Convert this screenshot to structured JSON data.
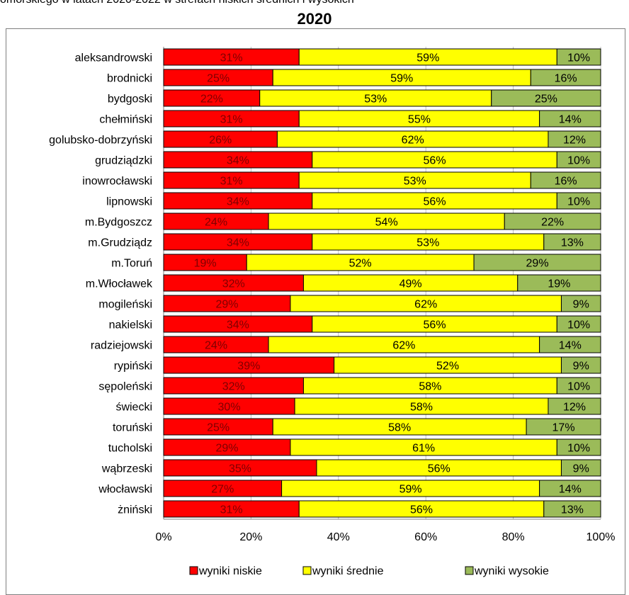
{
  "caption": "omorskiego w latach 2020-2022 w strefach niskich średnich i wysokich",
  "chart_data": {
    "type": "bar",
    "orientation": "horizontal",
    "stacked": true,
    "percent_stacked": true,
    "title": "2020",
    "categories": [
      "aleksandrowski",
      "brodnicki",
      "bydgoski",
      "chełmiński",
      "golubsko-dobrzyński",
      "grudziądzki",
      "inowrocławski",
      "lipnowski",
      "m.Bydgoszcz",
      "m.Grudziądz",
      "m.Toruń",
      "m.Włocławek",
      "mogileński",
      "nakielski",
      "radziejowski",
      "rypiński",
      "sępoleński",
      "świecki",
      "toruński",
      "tucholski",
      "wąbrzeski",
      "włocławski",
      "żniński"
    ],
    "series": [
      {
        "name": "wyniki niskie",
        "color": "#ff0000",
        "values": [
          31,
          25,
          22,
          31,
          26,
          34,
          31,
          34,
          24,
          34,
          19,
          32,
          29,
          34,
          24,
          39,
          32,
          30,
          25,
          29,
          35,
          27,
          31
        ]
      },
      {
        "name": "wyniki średnie",
        "color": "#ffff00",
        "values": [
          59,
          59,
          53,
          55,
          62,
          56,
          53,
          56,
          54,
          53,
          52,
          49,
          62,
          56,
          62,
          52,
          58,
          58,
          58,
          61,
          56,
          59,
          56
        ]
      },
      {
        "name": "wyniki wysokie",
        "color": "#9bbb59",
        "values": [
          10,
          16,
          25,
          14,
          12,
          10,
          16,
          10,
          22,
          13,
          29,
          19,
          9,
          10,
          14,
          9,
          10,
          12,
          17,
          10,
          9,
          14,
          13
        ]
      }
    ],
    "xlim": [
      0,
      100
    ],
    "xticks": [
      "0%",
      "20%",
      "40%",
      "60%",
      "80%",
      "100%"
    ],
    "grid": true,
    "legend_position": "bottom"
  }
}
